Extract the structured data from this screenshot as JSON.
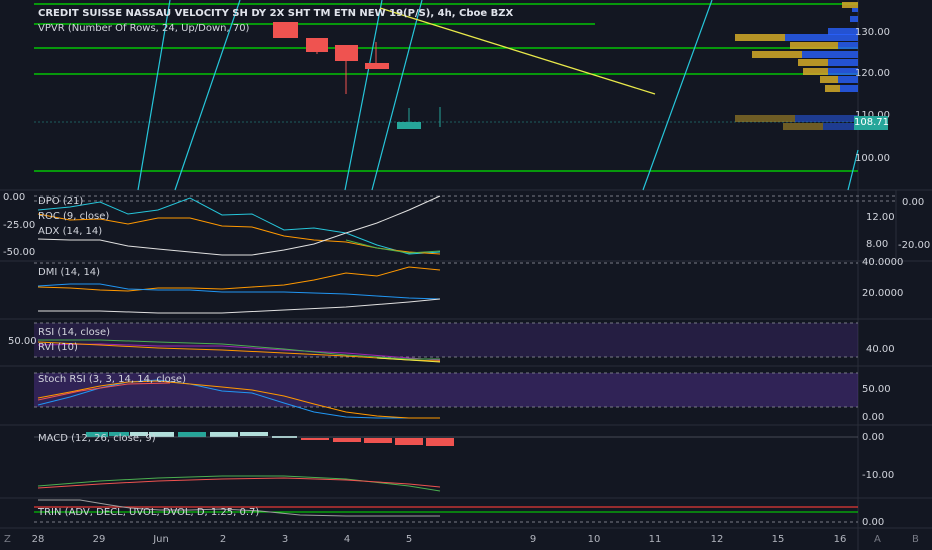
{
  "header": {
    "title": "CREDIT SUISSE NASSAU VELOCITY SH DY 2X SHT TM ETN NEW 19(P/S), 4h, Cboe BZX",
    "vpvr": "VPVR (Number Of Rows, 24, Up/Down, 70)"
  },
  "main_axis": {
    "ticks": [
      "130.00",
      "120.00",
      "110.00",
      "100.00"
    ],
    "last_price": "108.71"
  },
  "indicators": {
    "dpo": "DPO (21)",
    "roc": "ROC (9, close)",
    "adx": "ADX (14, 14)",
    "dmi": "DMI (14, 14)",
    "rsi": "RSI (14, close)",
    "rvi": "RVI (10)",
    "stoch": "Stoch RSI (3, 3, 14, 14, close)",
    "macd": "MACD (12, 26, close, 9)",
    "trin": "TRIN (ADV, DECL, UVOL, DVOL, D, 1.25, 0.7)"
  },
  "pane_axes": {
    "p1_left": [
      "0.00",
      "-25.00",
      "-50.00"
    ],
    "p1_right": [
      "12.00",
      "8.00"
    ],
    "p1_far": [
      "0.00",
      "-20.00"
    ],
    "p2_right": [
      "40.0000",
      "20.0000"
    ],
    "p3_left": [
      "50.00"
    ],
    "p3_right": [
      "40.00"
    ],
    "p4_right": [
      "50.00",
      "0.00"
    ],
    "p5_right": [
      "0.00",
      "-10.00"
    ],
    "p6_right": [
      "0.00"
    ]
  },
  "x_axis": {
    "ticks": [
      "28",
      "29",
      "Jun",
      "2",
      "3",
      "4",
      "5",
      "9",
      "10",
      "11",
      "12",
      "15",
      "16"
    ]
  },
  "corners": {
    "left": "Z",
    "auto": "A",
    "log": "B"
  },
  "colors": {
    "bg": "#131722",
    "green_line": "#00e600",
    "cyan_line": "#26c6da",
    "yellow_line": "#e8e84a",
    "bull": "#26a69a",
    "bear": "#ef5350",
    "vp_up": "#2962ff",
    "vp_down": "#c9a227",
    "purple_band": "#673ab7",
    "orange": "#ff9800",
    "blue": "#2196f3",
    "white": "#e0e0e0"
  }
}
